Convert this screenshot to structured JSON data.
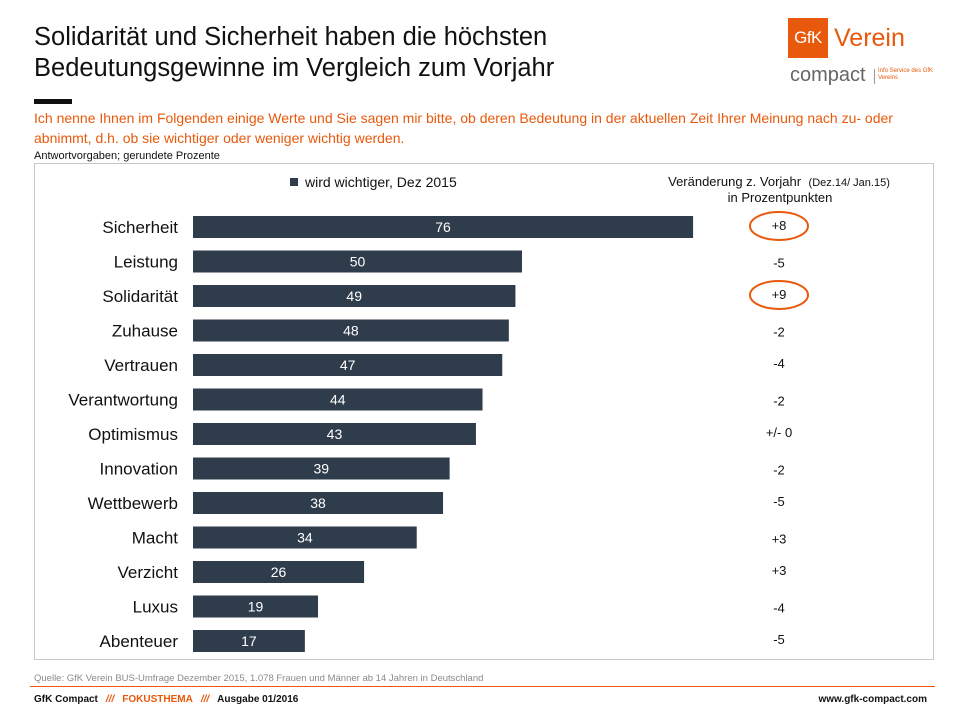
{
  "header": {
    "title_line1": "Solidarität und Sicherheit haben die höchsten",
    "title_line2": "Bedeutungsgewinne im Vergleich zum Vorjahr"
  },
  "logo": {
    "mark": "GfK",
    "verein": "Verein",
    "compact": "compact",
    "tagline": "Info Service des GfK Vereins",
    "brand_color": "#e8590c"
  },
  "question": "Ich nenne Ihnen  im Folgenden einige Werte und Sie sagen mir bitte, ob deren Bedeutung  in der aktuellen Zeit Ihrer Meinung nach zu-  oder abnimmt,  d.h.  ob sie wichtiger oder weniger wichtig werden.",
  "answer_note": "Antwortvorgaben;  gerundete  Prozente",
  "chart_data": {
    "type": "bar",
    "orientation": "horizontal",
    "legend_label": "wird wichtiger, Dez 2015",
    "legend_placement": "top-center",
    "change_header_line1": "Veränderung  z.  Vorjahr",
    "change_header_note": "(Dez.14/ Jan.15)",
    "change_header_line2": "in Prozentpunkten",
    "xlim": [
      0,
      100
    ],
    "bar_color": "#2f3c4b",
    "highlight_color": "#e8590c",
    "categories": [
      "Sicherheit",
      "Leistung",
      "Solidarität",
      "Zuhause",
      "Vertrauen",
      "Verantwortung",
      "Optimismus",
      "Innovation",
      "Wettbewerb",
      "Macht",
      "Verzicht",
      "Luxus",
      "Abenteuer"
    ],
    "values": [
      76,
      50,
      49,
      48,
      47,
      44,
      43,
      39,
      38,
      34,
      26,
      19,
      17
    ],
    "changes": [
      "+8",
      "-5",
      "+9",
      "-2",
      "-4",
      "-2",
      "+/- 0",
      "-2",
      "-5",
      "+3",
      "+3",
      "-4",
      "-5"
    ],
    "highlighted": [
      "Sicherheit",
      "Solidarität"
    ]
  },
  "source": "Quelle:  GfK Verein BUS-Umfrage Dezember 2015, 1.078 Frauen und Männer ab 14 Jahren in Deutschland",
  "footer": {
    "brand": "GfK Compact",
    "separator": "///",
    "section": "FOKUSTHEMA",
    "issue": "Ausgabe 01/2016",
    "url": "www.gfk-compact.com"
  }
}
